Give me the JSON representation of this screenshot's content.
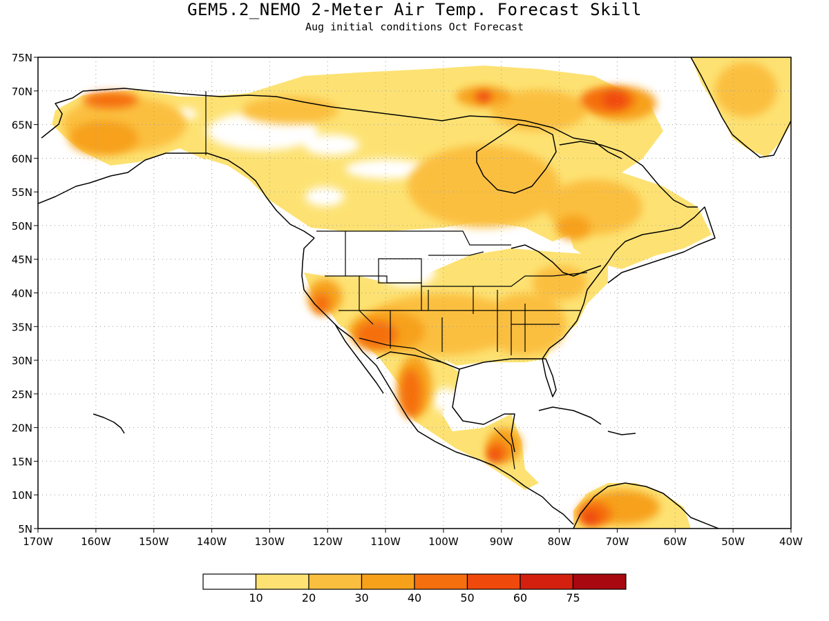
{
  "title": "GEM5.2_NEMO 2-Meter Air Temp. Forecast Skill",
  "subtitle": "Aug initial conditions  Oct Forecast",
  "map": {
    "lon_range": [
      -170,
      -40
    ],
    "lat_range": [
      5,
      75
    ],
    "lat_labels": [
      "75N",
      "70N",
      "65N",
      "60N",
      "55N",
      "50N",
      "45N",
      "40N",
      "35N",
      "30N",
      "25N",
      "20N",
      "15N",
      "10N",
      "5N"
    ],
    "lat_values": [
      75,
      70,
      65,
      60,
      55,
      50,
      45,
      40,
      35,
      30,
      25,
      20,
      15,
      10,
      5
    ],
    "lon_labels": [
      "170W",
      "160W",
      "150W",
      "140W",
      "130W",
      "120W",
      "110W",
      "100W",
      "90W",
      "80W",
      "70W",
      "60W",
      "50W",
      "40W"
    ],
    "lon_values": [
      -170,
      -160,
      -150,
      -140,
      -130,
      -120,
      -110,
      -100,
      -90,
      -80,
      -70,
      -60,
      -50,
      -40
    ],
    "grid": "dotted"
  },
  "colorbar": {
    "colors": [
      "#ffffff",
      "#fde273",
      "#fbbf3f",
      "#f7a11a",
      "#f56f0f",
      "#ef4a0c",
      "#d4210f",
      "#a8080f"
    ],
    "labels": [
      "10",
      "20",
      "30",
      "40",
      "50",
      "60",
      "75"
    ]
  }
}
